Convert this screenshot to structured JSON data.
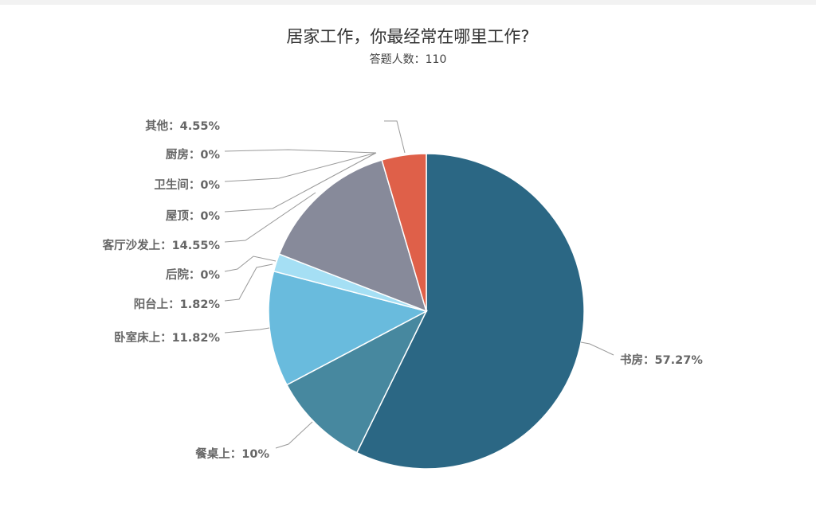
{
  "title": "居家工作，你最经常在哪里工作?",
  "subtitle": "答题人数：110",
  "chart_data": {
    "type": "pie",
    "title": "居家工作，你最经常在哪里工作?",
    "subtitle": "答题人数：110",
    "start": "12 o'clock, clockwise",
    "slices": [
      {
        "name": "书房",
        "value": 57.27,
        "label": "书房：57.27%",
        "color": "#2b6784"
      },
      {
        "name": "餐桌上",
        "value": 10,
        "label": "餐桌上：10%",
        "color": "#47889f"
      },
      {
        "name": "卧室床上",
        "value": 11.82,
        "label": "卧室床上：11.82%",
        "color": "#69bbdd"
      },
      {
        "name": "阳台上",
        "value": 1.82,
        "label": "阳台上：1.82%",
        "color": "#a5dff4"
      },
      {
        "name": "后院",
        "value": 0,
        "label": "后院：0%",
        "color": "#c7e8f4"
      },
      {
        "name": "客厅沙发上",
        "value": 14.55,
        "label": "客厅沙发上：14.55%",
        "color": "#878a9a"
      },
      {
        "name": "屋顶",
        "value": 0,
        "label": "屋顶：0%",
        "color": "#b8b8c4"
      },
      {
        "name": "卫生间",
        "value": 0,
        "label": "卫生间：0%",
        "color": "#c9a5a5"
      },
      {
        "name": "厨房",
        "value": 0,
        "label": "厨房：0%",
        "color": "#d88a7a"
      },
      {
        "name": "其他",
        "value": 4.55,
        "label": "其他：4.55%",
        "color": "#df6049"
      }
    ]
  }
}
